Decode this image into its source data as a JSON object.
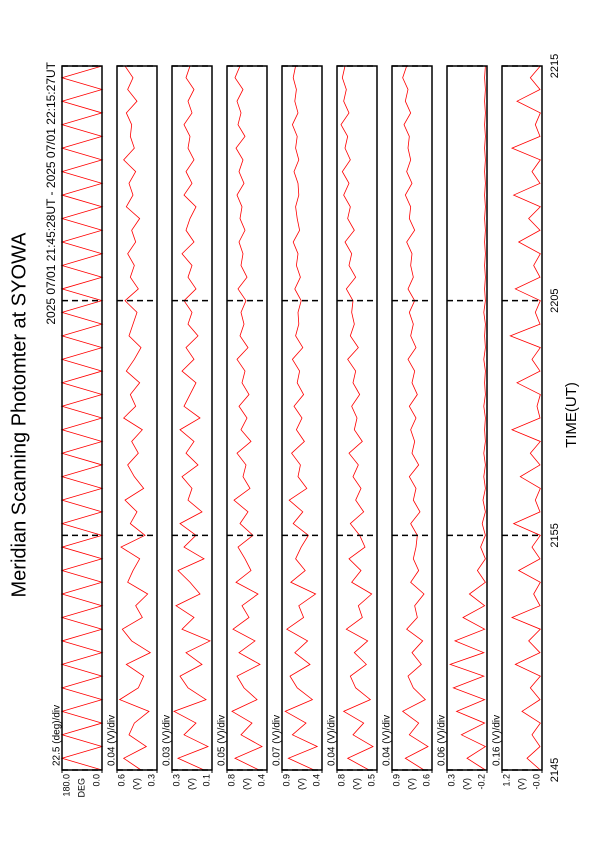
{
  "chart_data": {
    "type": "line",
    "title": "Meridian Scanning Photomter at SYOWA",
    "subtitle": "2025 07/01 21:45:28UT - 2025 07/01 22:15:27UT",
    "xlabel": "TIME(UT)",
    "grid": true,
    "xlim": [
      0,
      30
    ],
    "xticks": [
      {
        "value": 0,
        "label": "2145"
      },
      {
        "value": 10,
        "label": "2155"
      },
      {
        "value": 20,
        "label": "2205"
      },
      {
        "value": 30,
        "label": "2215"
      }
    ],
    "x": [
      0,
      0.5,
      1,
      1.5,
      2,
      2.5,
      3,
      3.5,
      4,
      4.5,
      5,
      5.5,
      6,
      6.5,
      7,
      7.5,
      8,
      8.5,
      9,
      9.5,
      10,
      10.5,
      11,
      11.5,
      12,
      12.5,
      13,
      13.5,
      14,
      14.5,
      15,
      15.5,
      16,
      16.5,
      17,
      17.5,
      18,
      18.5,
      19,
      19.5,
      20,
      20.5,
      21,
      21.5,
      22,
      22.5,
      23,
      23.5,
      24,
      24.5,
      25,
      25.5,
      26,
      26.5,
      27,
      27.5,
      28,
      28.5,
      29,
      29.5,
      30
    ],
    "panels": [
      {
        "label": "22.5 (deg)/div",
        "unit": "DEG",
        "ylim": [
          0,
          180
        ],
        "yticks": [
          {
            "value": 0,
            "label": "0.0"
          },
          {
            "value": 180,
            "label": "180.0"
          }
        ],
        "series": [
          {
            "color": "#ff0000",
            "values": [
              0,
              180,
              0,
              180,
              0,
              180,
              0,
              180,
              0,
              180,
              0,
              180,
              0,
              180,
              0,
              180,
              0,
              180,
              0,
              180,
              0,
              180,
              0,
              180,
              0,
              180,
              0,
              180,
              0,
              180,
              0,
              180,
              0,
              180,
              0,
              180,
              0,
              180,
              0,
              180,
              0,
              180,
              0,
              180,
              0,
              180,
              0,
              180,
              0,
              180,
              0,
              180,
              0,
              180,
              0,
              180,
              0,
              180,
              0,
              180,
              0
            ]
          }
        ]
      },
      {
        "label": "0.04 (V)/div",
        "unit": "(V)",
        "ylim": [
          0.3,
          0.6
        ],
        "yticks": [
          0.3,
          0.6
        ],
        "series": [
          {
            "color": "#ff0000",
            "values": [
              0.42,
              0.55,
              0.38,
              0.51,
              0.47,
              0.36,
              0.58,
              0.44,
              0.4,
              0.53,
              0.35,
              0.49,
              0.56,
              0.41,
              0.46,
              0.37,
              0.52,
              0.48,
              0.43,
              0.57,
              0.39,
              0.5,
              0.45,
              0.54,
              0.4,
              0.47,
              0.52,
              0.44,
              0.49,
              0.41,
              0.55,
              0.46,
              0.5,
              0.43,
              0.53,
              0.47,
              0.42,
              0.51,
              0.48,
              0.45,
              0.54,
              0.44,
              0.5,
              0.47,
              0.52,
              0.46,
              0.49,
              0.43,
              0.53,
              0.48,
              0.51,
              0.46,
              0.55,
              0.47,
              0.5,
              0.49,
              0.53,
              0.45,
              0.52,
              0.48,
              0.54
            ]
          }
        ]
      },
      {
        "label": "0.03 (V)/div",
        "unit": "(V)",
        "ylim": [
          0.1,
          0.3
        ],
        "yticks": [
          0.1,
          0.3
        ],
        "series": [
          {
            "color": "#ff0000",
            "values": [
              0.14,
              0.27,
              0.12,
              0.24,
              0.18,
              0.29,
              0.13,
              0.22,
              0.26,
              0.15,
              0.23,
              0.11,
              0.25,
              0.19,
              0.28,
              0.16,
              0.21,
              0.27,
              0.14,
              0.24,
              0.18,
              0.26,
              0.15,
              0.22,
              0.2,
              0.25,
              0.17,
              0.23,
              0.19,
              0.26,
              0.16,
              0.24,
              0.21,
              0.18,
              0.25,
              0.19,
              0.23,
              0.17,
              0.22,
              0.2,
              0.24,
              0.18,
              0.22,
              0.2,
              0.25,
              0.19,
              0.23,
              0.21,
              0.18,
              0.24,
              0.2,
              0.23,
              0.19,
              0.22,
              0.21,
              0.24,
              0.2,
              0.22,
              0.19,
              0.23,
              0.21
            ]
          }
        ]
      },
      {
        "label": "0.05 (V)/div",
        "unit": "(V)",
        "ylim": [
          0.4,
          0.8
        ],
        "yticks": [
          0.4,
          0.8
        ],
        "series": [
          {
            "color": "#ff0000",
            "values": [
              0.48,
              0.72,
              0.45,
              0.66,
              0.55,
              0.75,
              0.5,
              0.63,
              0.7,
              0.47,
              0.68,
              0.52,
              0.74,
              0.58,
              0.65,
              0.49,
              0.71,
              0.56,
              0.62,
              0.69,
              0.54,
              0.67,
              0.59,
              0.73,
              0.57,
              0.64,
              0.61,
              0.7,
              0.56,
              0.66,
              0.6,
              0.68,
              0.58,
              0.65,
              0.62,
              0.7,
              0.59,
              0.67,
              0.63,
              0.66,
              0.61,
              0.69,
              0.6,
              0.66,
              0.64,
              0.68,
              0.62,
              0.67,
              0.65,
              0.7,
              0.63,
              0.68,
              0.64,
              0.71,
              0.62,
              0.69,
              0.66,
              0.7,
              0.64,
              0.72,
              0.67
            ]
          }
        ]
      },
      {
        "label": "0.07 (V)/div",
        "unit": "(V)",
        "ylim": [
          0.4,
          0.9
        ],
        "yticks": [
          0.4,
          0.9
        ],
        "series": [
          {
            "color": "#ff0000",
            "values": [
              0.5,
              0.82,
              0.46,
              0.77,
              0.6,
              0.86,
              0.52,
              0.71,
              0.8,
              0.55,
              0.74,
              0.58,
              0.84,
              0.63,
              0.69,
              0.48,
              0.79,
              0.61,
              0.73,
              0.66,
              0.57,
              0.76,
              0.64,
              0.81,
              0.59,
              0.7,
              0.67,
              0.78,
              0.62,
              0.72,
              0.65,
              0.75,
              0.63,
              0.71,
              0.68,
              0.77,
              0.64,
              0.73,
              0.69,
              0.7,
              0.66,
              0.74,
              0.67,
              0.72,
              0.7,
              0.76,
              0.68,
              0.71,
              0.73,
              0.69,
              0.7,
              0.75,
              0.69,
              0.73,
              0.71,
              0.77,
              0.7,
              0.74,
              0.72,
              0.76,
              0.73
            ]
          }
        ]
      },
      {
        "label": "0.04 (V)/div",
        "unit": "(V)",
        "ylim": [
          0.5,
          0.8
        ],
        "yticks": [
          0.5,
          0.8
        ],
        "series": [
          {
            "color": "#ff0000",
            "values": [
              0.56,
              0.72,
              0.53,
              0.68,
              0.6,
              0.75,
              0.55,
              0.66,
              0.7,
              0.58,
              0.67,
              0.57,
              0.73,
              0.61,
              0.64,
              0.54,
              0.69,
              0.62,
              0.71,
              0.59,
              0.63,
              0.7,
              0.6,
              0.66,
              0.62,
              0.68,
              0.64,
              0.71,
              0.61,
              0.67,
              0.65,
              0.69,
              0.63,
              0.68,
              0.66,
              0.72,
              0.64,
              0.7,
              0.67,
              0.69,
              0.68,
              0.73,
              0.66,
              0.71,
              0.69,
              0.74,
              0.67,
              0.72,
              0.7,
              0.75,
              0.71,
              0.76,
              0.7,
              0.74,
              0.72,
              0.77,
              0.71,
              0.75,
              0.73,
              0.76,
              0.74
            ]
          }
        ]
      },
      {
        "label": "0.04 (V)/div",
        "unit": "(V)",
        "ylim": [
          0.6,
          0.9
        ],
        "yticks": [
          0.6,
          0.9
        ],
        "series": [
          {
            "color": "#ff0000",
            "values": [
              0.66,
              0.8,
              0.63,
              0.77,
              0.7,
              0.82,
              0.65,
              0.74,
              0.78,
              0.68,
              0.75,
              0.67,
              0.79,
              0.71,
              0.73,
              0.66,
              0.76,
              0.7,
              0.74,
              0.72,
              0.71,
              0.76,
              0.69,
              0.74,
              0.72,
              0.77,
              0.7,
              0.75,
              0.73,
              0.76,
              0.72,
              0.77,
              0.71,
              0.75,
              0.73,
              0.78,
              0.72,
              0.76,
              0.74,
              0.77,
              0.73,
              0.78,
              0.74,
              0.76,
              0.75,
              0.79,
              0.73,
              0.77,
              0.76,
              0.8,
              0.75,
              0.79,
              0.76,
              0.78,
              0.77,
              0.81,
              0.76,
              0.8,
              0.78,
              0.82,
              0.79
            ]
          }
        ]
      },
      {
        "label": "0.06 (V)/div",
        "unit": "(V)",
        "ylim": [
          -0.2,
          0.3
        ],
        "yticks": [
          -0.2,
          0.3
        ],
        "series": [
          {
            "color": "#ff0000",
            "values": [
              -0.18,
              0.05,
              -0.18,
              0.12,
              -0.17,
              0.18,
              -0.17,
              0.22,
              -0.16,
              0.26,
              -0.16,
              0.2,
              -0.17,
              0.1,
              -0.17,
              0.02,
              -0.18,
              -0.08,
              -0.18,
              -0.12,
              -0.18,
              -0.14,
              -0.18,
              -0.15,
              -0.18,
              -0.16,
              -0.18,
              -0.16,
              -0.18,
              -0.17,
              -0.18,
              -0.16,
              -0.18,
              -0.17,
              -0.18,
              -0.16,
              -0.18,
              -0.17,
              -0.18,
              -0.16,
              -0.18,
              -0.17,
              -0.18,
              -0.17,
              -0.18,
              -0.17,
              -0.18,
              -0.17,
              -0.18,
              -0.17,
              -0.18,
              -0.17,
              -0.18,
              -0.17,
              -0.18,
              -0.17,
              -0.18,
              -0.17,
              -0.18,
              -0.17,
              -0.18
            ]
          }
        ]
      },
      {
        "label": "0.16 (V)/div",
        "unit": "(V)",
        "ylim": [
          0,
          1.2
        ],
        "yticks": [
          {
            "value": 0,
            "label": "-0.0"
          },
          1.2
        ],
        "series": [
          {
            "color": "#ff0000",
            "values": [
              0.05,
              0.45,
              0.06,
              0.3,
              0.05,
              0.6,
              0.06,
              0.35,
              0.05,
              0.8,
              0.06,
              0.4,
              0.05,
              0.9,
              0.06,
              0.25,
              0.05,
              0.7,
              0.06,
              0.3,
              0.05,
              0.85,
              0.06,
              0.2,
              0.05,
              0.65,
              0.06,
              0.35,
              0.05,
              0.9,
              0.06,
              0.15,
              0.05,
              0.75,
              0.06,
              0.3,
              0.05,
              0.95,
              0.06,
              0.2,
              0.05,
              0.8,
              0.06,
              0.25,
              0.05,
              0.7,
              0.06,
              0.4,
              0.05,
              0.85,
              0.06,
              0.3,
              0.05,
              0.9,
              0.06,
              0.2,
              0.05,
              0.75,
              0.06,
              0.35,
              0.05
            ]
          }
        ]
      }
    ]
  }
}
